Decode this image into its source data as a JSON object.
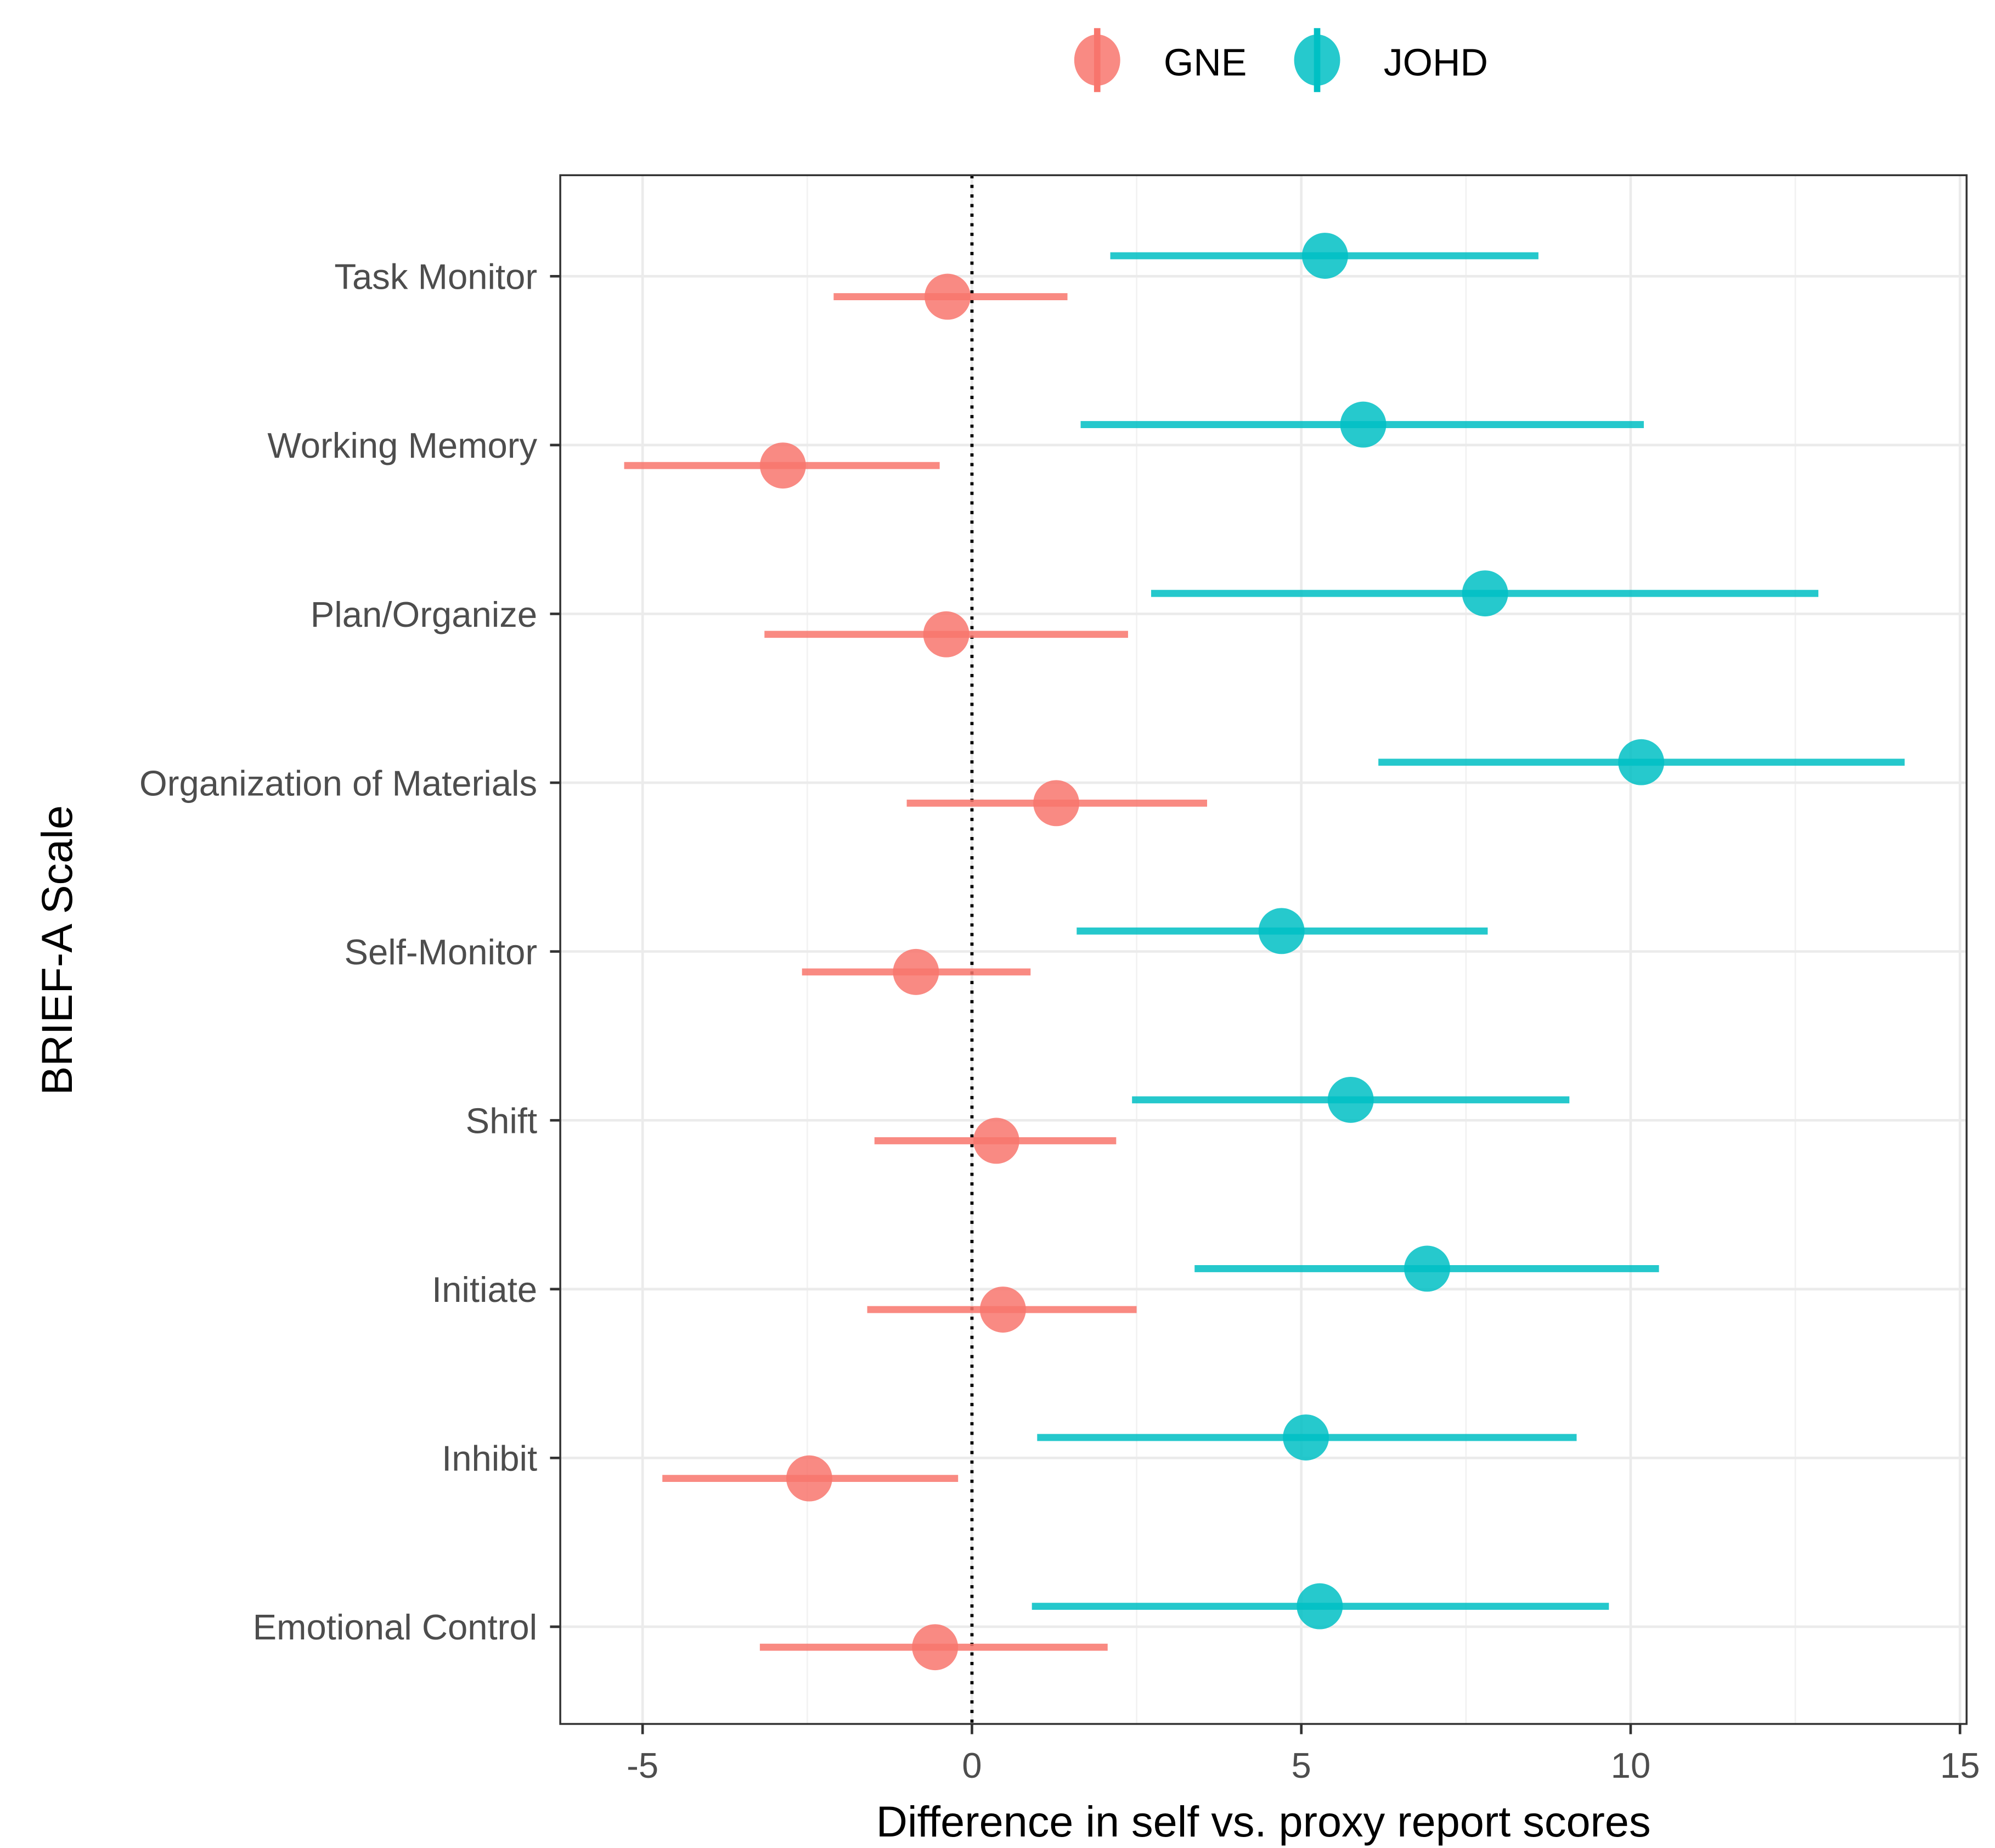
{
  "chart_data": {
    "type": "forest",
    "title": "",
    "xlabel": "Difference in self vs. proxy report scores",
    "ylabel": "BRIEF-A Scale",
    "xlim": [
      -6.25,
      15.1
    ],
    "xticks": [
      -5,
      0,
      5,
      10,
      15
    ],
    "xtick_labels": [
      "-5",
      "0",
      "5",
      "10",
      "15"
    ],
    "reference_line": 0,
    "grid": true,
    "legend": {
      "placement": "top",
      "entries": [
        "GNE",
        "JOHD"
      ]
    },
    "colors": {
      "GNE": "#F8766D",
      "JOHD": "#00BFC4"
    },
    "categories": [
      "Task Monitor",
      "Working Memory",
      "Plan/Organize",
      "Organization of Materials",
      "Self-Monitor",
      "Shift",
      "Initiate",
      "Inhibit",
      "Emotional Control"
    ],
    "series": [
      {
        "name": "GNE",
        "estimate": [
          -0.37,
          -2.87,
          -0.39,
          1.28,
          -0.85,
          0.37,
          0.47,
          -2.47,
          -0.56
        ],
        "lower": [
          -2.1,
          -5.28,
          -3.15,
          -0.99,
          -2.58,
          -1.48,
          -1.59,
          -4.7,
          -3.22
        ],
        "upper": [
          1.45,
          -0.49,
          2.37,
          3.57,
          0.89,
          2.19,
          2.5,
          -0.21,
          2.06
        ]
      },
      {
        "name": "JOHD",
        "estimate": [
          5.36,
          5.94,
          7.79,
          10.16,
          4.7,
          5.75,
          6.91,
          5.07,
          5.28
        ],
        "lower": [
          2.1,
          1.65,
          2.72,
          6.17,
          1.59,
          2.43,
          3.38,
          0.99,
          0.91
        ],
        "upper": [
          8.6,
          10.2,
          12.85,
          14.16,
          7.83,
          9.07,
          10.43,
          9.18,
          9.67
        ]
      }
    ]
  }
}
